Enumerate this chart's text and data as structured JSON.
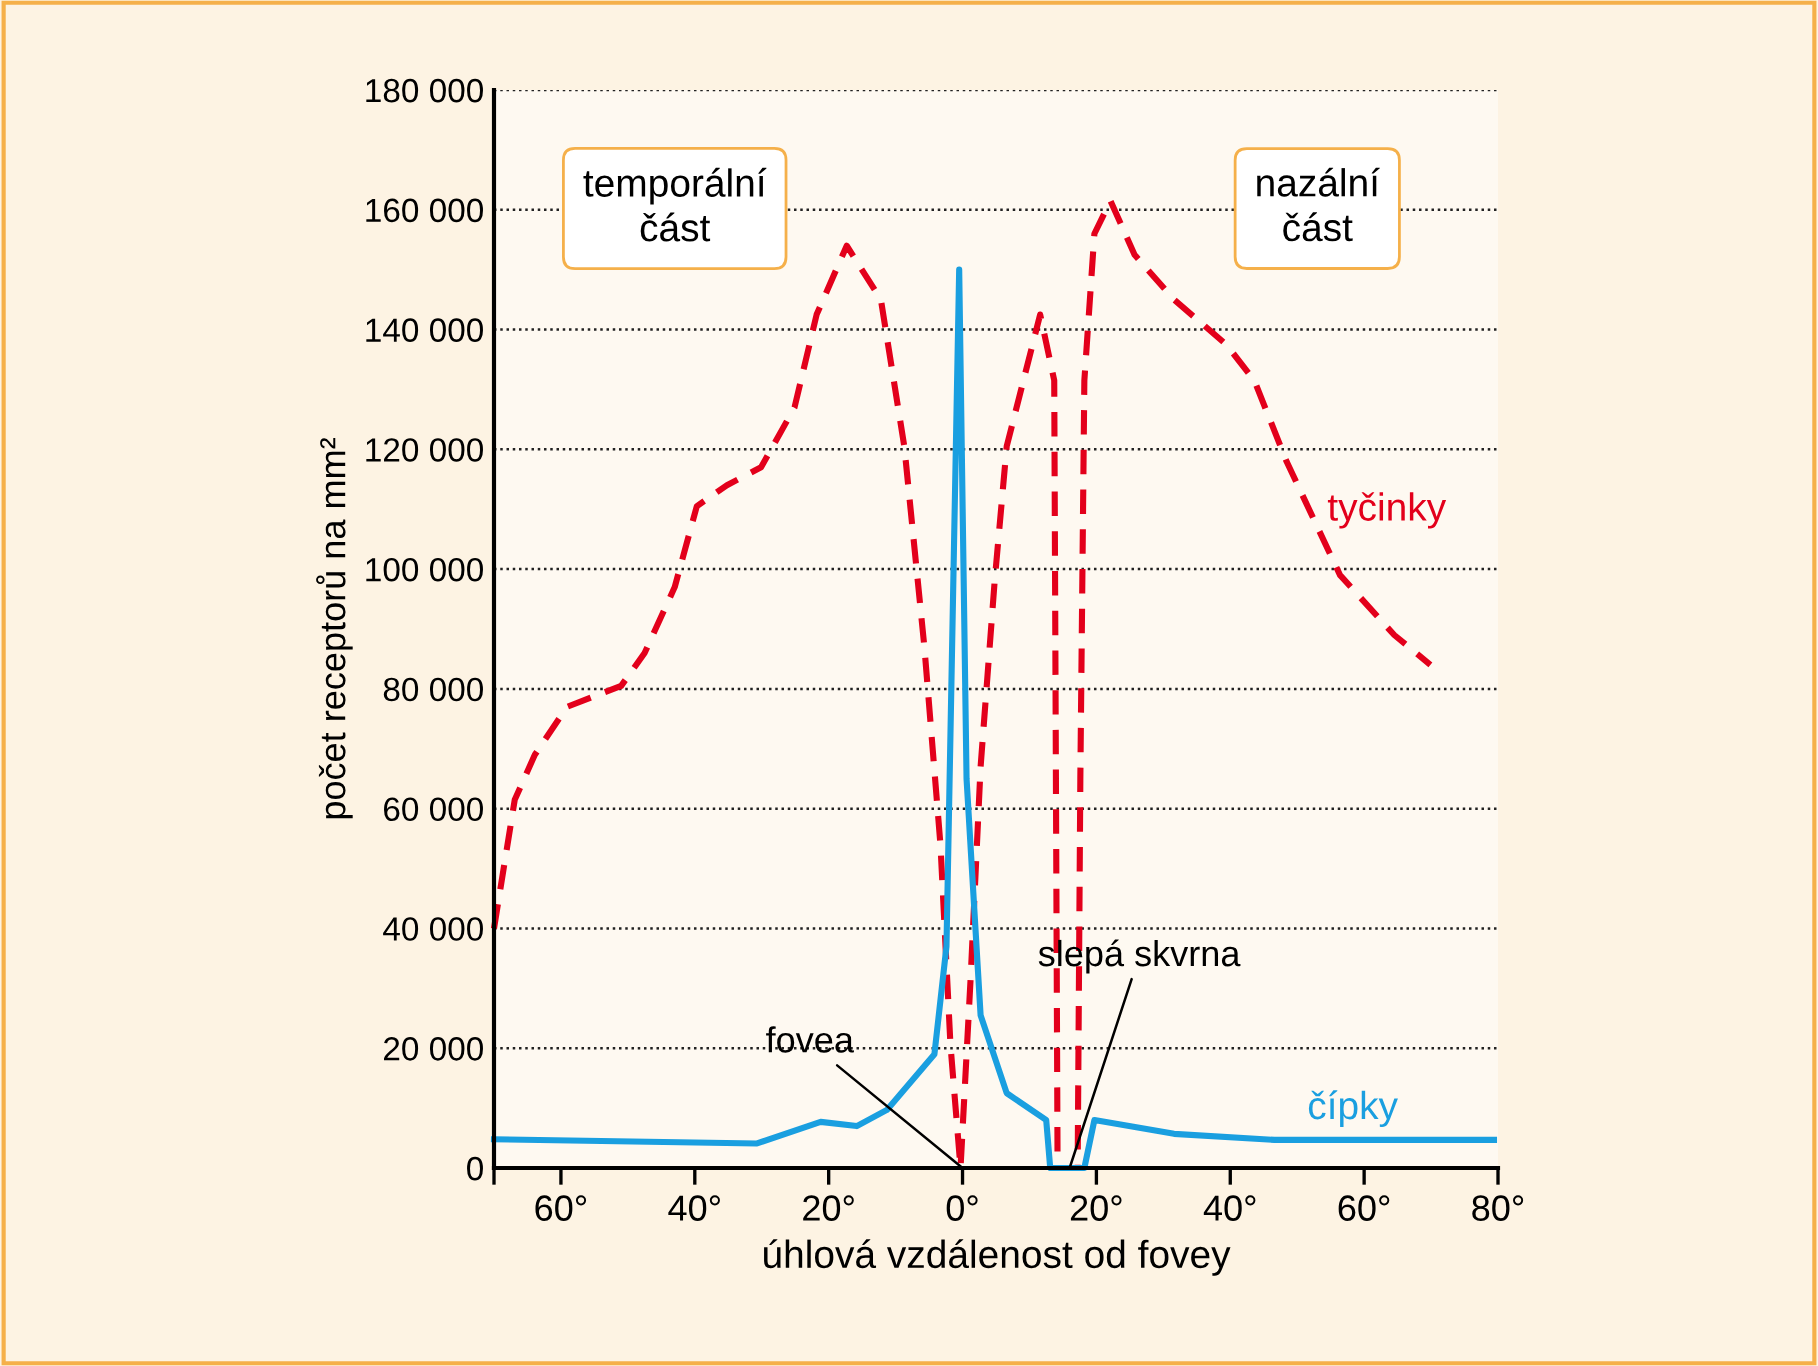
{
  "chart_data": {
    "type": "line",
    "xlabel": "úhlová vzdálenost od fovey",
    "ylabel": "počet receptorů na mm²",
    "xlim": [
      -70,
      80
    ],
    "xticks": [
      {
        "value": -70,
        "label": null
      },
      {
        "value": -60,
        "label": "60°"
      },
      {
        "value": -40,
        "label": "40°"
      },
      {
        "value": -20,
        "label": "20°"
      },
      {
        "value": 0,
        "label": "0°"
      },
      {
        "value": 20,
        "label": "20°"
      },
      {
        "value": 40,
        "label": "40°"
      },
      {
        "value": 60,
        "label": "60°"
      },
      {
        "value": 80,
        "label": "80°"
      }
    ],
    "ylim": [
      0,
      180000
    ],
    "yticks": [
      0,
      {
        "value": 20000,
        "label": "20 000"
      },
      {
        "value": 40000,
        "label": "40 000"
      },
      {
        "value": 60000,
        "label": "60 000"
      },
      {
        "value": 80000,
        "label": "80 000"
      },
      {
        "value": 100000,
        "label": "100 000"
      },
      {
        "value": 120000,
        "label": "120 000"
      },
      {
        "value": 140000,
        "label": "140 000"
      },
      {
        "value": 160000,
        "label": "160 000"
      },
      {
        "value": 180000,
        "label": "180 000"
      }
    ],
    "grid": "y",
    "legend": false,
    "series": [
      {
        "name": "tyčinky",
        "color": "#e3001b",
        "line_style": "dashed",
        "x": [
          -70,
          -66.9,
          -63.9,
          -59.1,
          -51,
          -47.5,
          -43,
          -39.7,
          -35.2,
          -30.1,
          -25.1,
          -21.8,
          -17.3,
          -12.2,
          -8.7,
          -5.7,
          -3.3,
          -1.8,
          -0.3,
          1.2,
          2.7,
          4.8,
          6.6,
          11.6,
          13.7,
          14.2,
          17.2,
          17.6,
          18.2,
          19.7,
          22.1,
          25.7,
          31.6,
          39.4,
          43.6,
          48.4,
          56.4,
          64.5,
          69.9
        ],
        "values": [
          40000,
          61500,
          69000,
          77000,
          80500,
          86000,
          97000,
          110500,
          114000,
          117000,
          127000,
          142500,
          154000,
          145000,
          120500,
          87000,
          54000,
          20500,
          0,
          31500,
          67000,
          98000,
          120500,
          142500,
          131500,
          0,
          0,
          65000,
          131500,
          156000,
          161500,
          152500,
          145000,
          137500,
          131500,
          118000,
          99000,
          89000,
          84000
        ]
      },
      {
        "name": "čípky",
        "color": "#1a9fe0",
        "line_style": "solid",
        "x": [
          -70,
          -30.7,
          -21.2,
          -15.8,
          -11.3,
          -4.2,
          -2.4,
          -0.5,
          0.6,
          2.7,
          6.6,
          12.5,
          13.1,
          18.2,
          19.7,
          31.6,
          46.6,
          79.4
        ],
        "values": [
          4800,
          4100,
          7700,
          7000,
          9700,
          19000,
          37000,
          150000,
          65000,
          25500,
          12500,
          8000,
          0,
          0,
          8000,
          5700,
          4700,
          4700
        ]
      }
    ],
    "annotations": [
      "temporální\nčást",
      "nazální\nčást",
      {
        "text": "fovea",
        "x": 0,
        "y": 0
      },
      {
        "text": "slepá skvrna",
        "x": 16,
        "y": 0
      }
    ]
  }
}
